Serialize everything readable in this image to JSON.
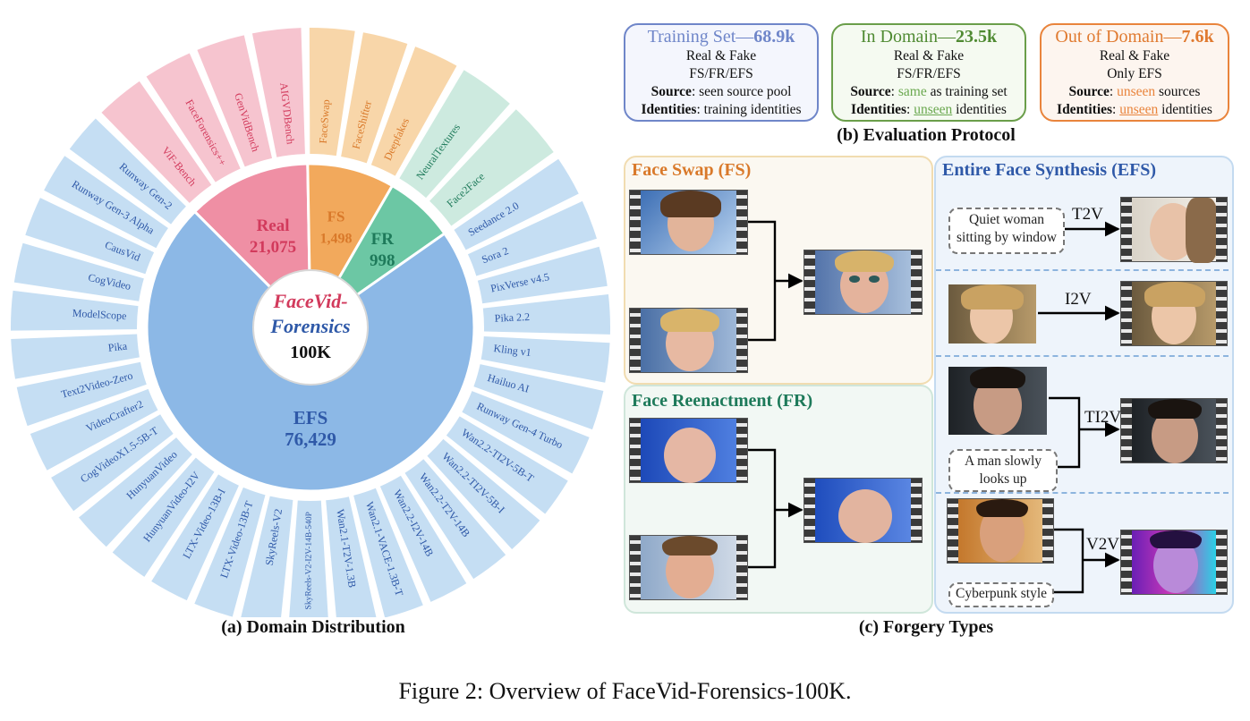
{
  "figure_caption": "Figure 2: Overview of FaceVid-Forensics-100K.",
  "panel_a": {
    "caption": "(a)  Domain Distribution",
    "center": {
      "line1": "FaceVid-",
      "line2": "Forensics",
      "line3": "100K"
    },
    "segments": [
      {
        "name": "Real",
        "value": "21,075",
        "color": "#ef8fa4",
        "label_color": "#d23a5c"
      },
      {
        "name": "FS",
        "value": "1,498",
        "color": "#f2a95c",
        "label_color": "#d9792a"
      },
      {
        "name": "FR",
        "value": "998",
        "color": "#6cc7a4",
        "label_color": "#1e7a5a"
      },
      {
        "name": "EFS",
        "value": "76,429",
        "color": "#8cb8e6",
        "label_color": "#2f59a8"
      }
    ],
    "outer": {
      "real": [
        "ViF-Bench",
        "FaceForensics++",
        "GenVidBench",
        "AIGVDBench"
      ],
      "fs": [
        "FaceSwap",
        "FaceShifter",
        "Deepfakes"
      ],
      "fr": [
        "NeuralTextures",
        "Face2Face"
      ],
      "efs": [
        "Seedance 2.0",
        "Sora 2",
        "PixVerse v4.5",
        "Pika 2.2",
        "Kling v1",
        "Hailuo AI",
        "Runway Gen-4 Turbo",
        "Wan2.2-TI2V-5B-T",
        "Wan2.2-TI2V-5B-I",
        "Wan2.2-T2V-14B",
        "Wan2.2-I2V-14B",
        "Wan2.1-VACE-1.3B-T",
        "Wan2.1-T2V-1.3B",
        "SkyReels-V2-I2V-14B-540P",
        "SkyReels-V2",
        "LTX-Video-13B-T",
        "LTX-Video-13B-I",
        "HunyuanVideo-I2V",
        "HunyuanVideo",
        "CogVideoX1.5-5B-T",
        "VideoCrafter2",
        "Text2Video-Zero",
        "Pika",
        "ModelScope",
        "CogVideo",
        "CausVid",
        "Runway Gen-3 Alpha",
        "Runway Gen-2"
      ]
    },
    "outer_colors": {
      "real": "#f6c4cf",
      "fs": "#f8d6a9",
      "fr": "#cdeadf",
      "efs": "#c5def3"
    },
    "outer_label_colors": {
      "real": "#d23a5c",
      "fs": "#d9792a",
      "fr": "#1e7a5a",
      "efs": "#2f59a8"
    }
  },
  "panel_b": {
    "caption": "(b) Evaluation Protocol",
    "cards": [
      {
        "title": "Training Set—",
        "count": "68.9k",
        "l1": "Real & Fake",
        "l2": "FS/FR/EFS",
        "source_key": "Source",
        "source_val": ": seen source pool",
        "id_key": "Identities",
        "id_val": ": training identities",
        "border": "#6f86c9",
        "bg": "#f4f6fd",
        "title_color": "#6f86c9"
      },
      {
        "title": "In Domain—",
        "count": "23.5k",
        "l1": "Real & Fake",
        "l2": "FS/FR/EFS",
        "source_key": "Source",
        "source_sep": ": ",
        "source_hl": "same",
        "source_rest": " as training set",
        "id_key": "Identities",
        "id_sep": ": ",
        "id_hl": "unseen",
        "id_rest": " identities",
        "border": "#6a9e4a",
        "bg": "#f5faf1",
        "title_color": "#4f8a32",
        "hl_color": "#6aa84f"
      },
      {
        "title": "Out of Domain—",
        "count": "7.6k",
        "l1": "Real & Fake",
        "l2": "Only EFS",
        "source_key": "Source",
        "source_sep": ": ",
        "source_hl": "unseen",
        "source_rest": " sources",
        "id_key": "Identities",
        "id_sep": ": ",
        "id_hl": "unseen",
        "id_rest": " identities",
        "border": "#e9843c",
        "bg": "#fdf5ef",
        "title_color": "#e07a30",
        "hl_color": "#e9843c"
      }
    ]
  },
  "panel_c": {
    "caption": "(c)  Forgery Types",
    "fs_title": "Face Swap (FS)",
    "fr_title": "Face Reenactment (FR)",
    "efs_title": "Entire Face Synthesis (EFS)",
    "t2v": {
      "op": "T2V",
      "prompt": "Quiet woman sitting by window"
    },
    "i2v": {
      "op": "I2V"
    },
    "ti2v": {
      "op": "TI2V",
      "prompt": "A man slowly looks up"
    },
    "v2v": {
      "op": "V2V",
      "prompt": "Cyberpunk style"
    }
  }
}
